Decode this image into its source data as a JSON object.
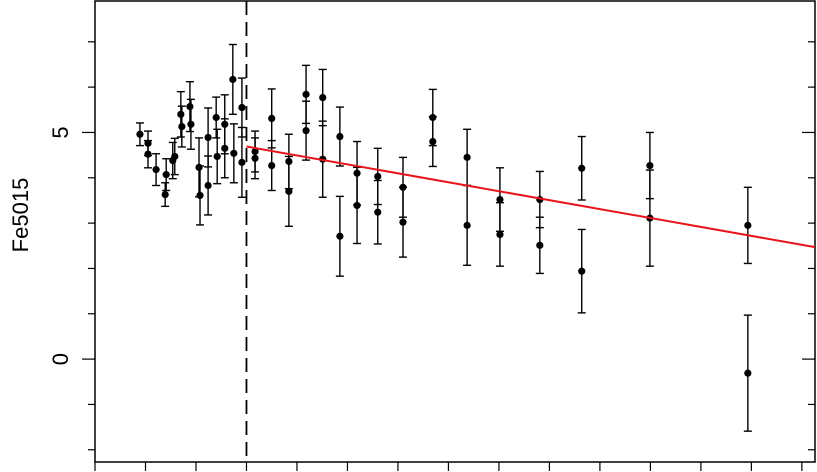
{
  "chart_data": {
    "type": "scatter",
    "y_label": "Fe5015",
    "xlim": [
      0,
      14.26
    ],
    "xticks": [
      0,
      1,
      2,
      3,
      4,
      5,
      6,
      7,
      8,
      9,
      10,
      11,
      12,
      13,
      14
    ],
    "ylim": [
      -2.27,
      7.9
    ],
    "yticks": [
      0,
      5
    ],
    "yminor_ticks": [
      -2,
      -1,
      1,
      2,
      3,
      4,
      6,
      7
    ],
    "grid": false,
    "vline": {
      "x": 3,
      "style": "dashed",
      "color": "#000000"
    },
    "fit": {
      "x": [
        3,
        14.26
      ],
      "y": [
        4.69,
        2.47
      ],
      "color": "#e8141a"
    },
    "series": [
      {
        "color": "#000000",
        "x": [
          0.89,
          1.05,
          1.05,
          1.21,
          1.39,
          1.41,
          1.54,
          1.58,
          1.7,
          1.72,
          1.88,
          1.9,
          2.06,
          2.08,
          2.24,
          2.24,
          2.4,
          2.42,
          2.57,
          2.57,
          2.73,
          2.75,
          2.91,
          2.91,
          3.17,
          3.17,
          3.5,
          3.5,
          3.84,
          3.84,
          4.18,
          4.18,
          4.51,
          4.51,
          4.85,
          4.85,
          5.19,
          5.19,
          5.6,
          5.6,
          6.1,
          6.1,
          6.69,
          6.69,
          7.37,
          7.37,
          8.02,
          8.02,
          8.81,
          8.81,
          9.64,
          9.64,
          10.99,
          10.99,
          12.93,
          12.93
        ],
        "values": [
          4.96,
          4.76,
          4.52,
          4.18,
          3.63,
          4.07,
          4.38,
          4.47,
          5.4,
          5.13,
          5.57,
          5.18,
          4.23,
          3.61,
          4.89,
          3.83,
          5.33,
          4.47,
          5.18,
          4.65,
          6.17,
          4.54,
          5.55,
          4.34,
          4.58,
          4.43,
          5.31,
          4.27,
          4.36,
          3.7,
          5.84,
          5.04,
          5.77,
          4.41,
          4.91,
          2.71,
          4.1,
          3.39,
          4.03,
          3.24,
          3.79,
          3.02,
          5.33,
          4.8,
          4.45,
          2.95,
          3.52,
          2.75,
          3.52,
          2.51,
          4.21,
          1.94,
          4.27,
          3.11,
          2.95,
          -0.31
        ],
        "errors": [
          0.25,
          0.27,
          0.3,
          0.35,
          0.26,
          0.35,
          0.4,
          0.4,
          0.5,
          0.45,
          0.55,
          0.55,
          0.65,
          0.65,
          0.65,
          0.65,
          0.45,
          0.6,
          0.65,
          0.65,
          0.77,
          0.65,
          0.65,
          0.77,
          0.45,
          0.45,
          0.65,
          0.55,
          0.6,
          0.77,
          0.64,
          0.65,
          0.62,
          0.84,
          0.65,
          0.88,
          0.7,
          0.84,
          0.62,
          0.7,
          0.66,
          0.77,
          0.62,
          0.55,
          0.62,
          0.88,
          0.7,
          0.7,
          0.62,
          0.62,
          0.7,
          0.92,
          0.73,
          1.06,
          0.84,
          1.28
        ]
      }
    ]
  }
}
